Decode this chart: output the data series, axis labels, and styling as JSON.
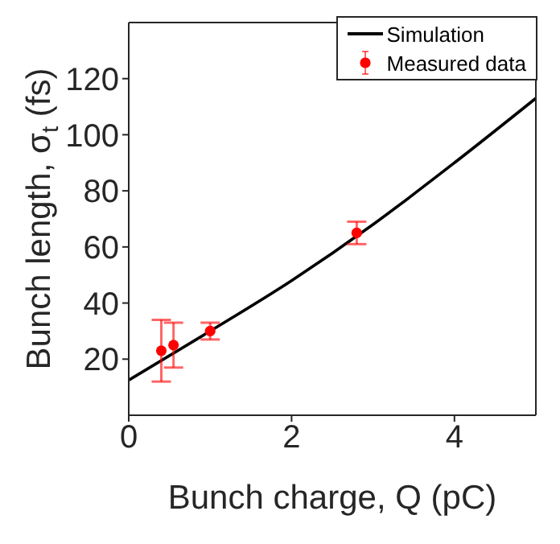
{
  "chart_data": {
    "type": "line",
    "xlabel": "Bunch charge, Q (pC)",
    "ylabel": "Bunch length, σ$_{t}$ (fs)",
    "xlim": [
      0,
      5
    ],
    "xticks": [
      0,
      2,
      4
    ],
    "ylim": [
      0,
      140
    ],
    "yticks": [
      20,
      40,
      60,
      80,
      100,
      120
    ],
    "grid": false,
    "legend": "top right",
    "series": [
      {
        "name": "Simulation",
        "type": "line",
        "color": "#000000",
        "marker": "none",
        "x": [
          0,
          1,
          2,
          3,
          4,
          5
        ],
        "values": [
          12.5,
          30,
          48,
          68,
          90,
          113
        ]
      },
      {
        "name": "Measured data",
        "type": "scatter",
        "color": "#ff0000",
        "marker": "circle",
        "x": [
          0.4,
          0.55,
          1,
          2.8
        ],
        "values": [
          23,
          25,
          30,
          65
        ],
        "errors": [
          [
            12,
            34
          ],
          [
            17,
            33
          ],
          [
            27,
            33
          ],
          [
            61,
            69
          ]
        ]
      }
    ]
  }
}
